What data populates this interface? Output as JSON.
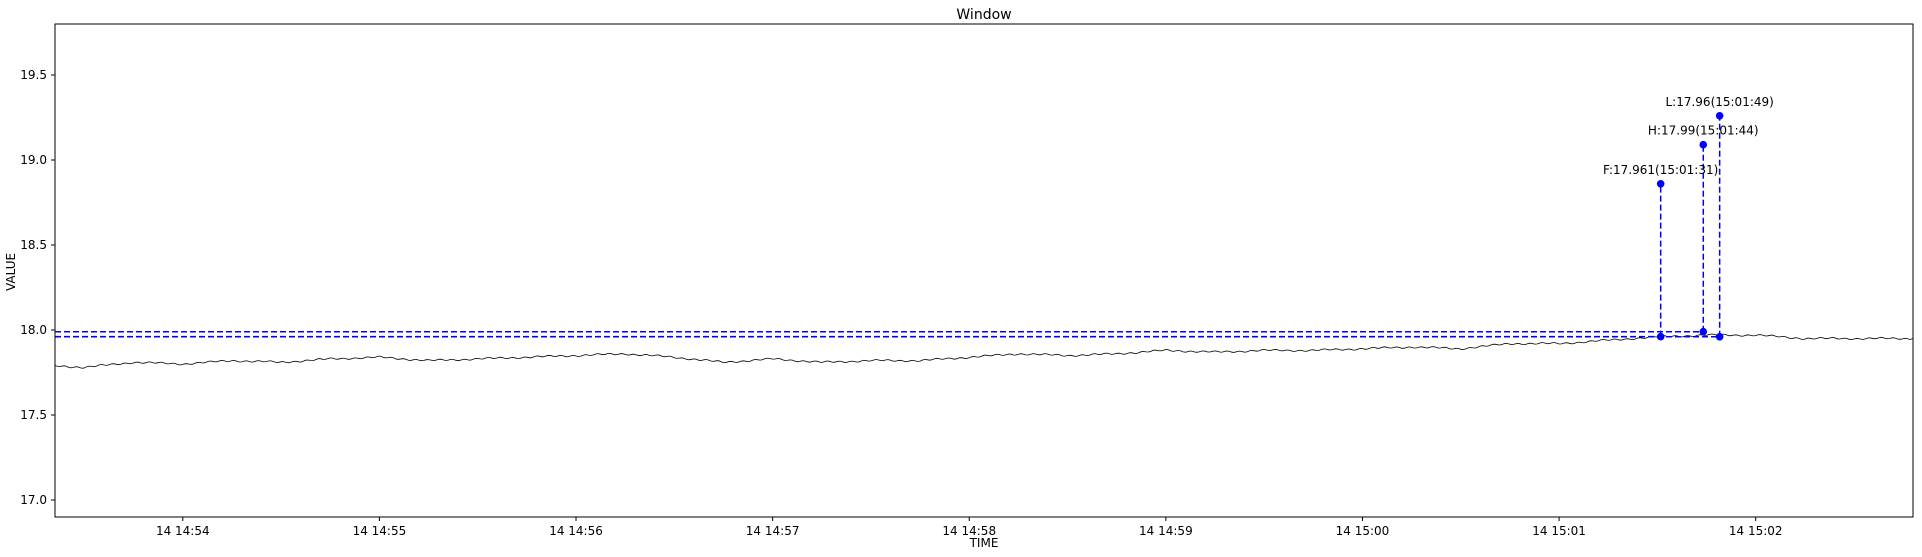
{
  "chart_data": {
    "type": "line",
    "title": "Window",
    "xlabel": "TIME",
    "ylabel": "VALUE",
    "xlim": [
      "14:53:21",
      "15:02:48"
    ],
    "ylim": [
      16.9,
      19.8
    ],
    "grid": false,
    "yticks": [
      17.0,
      17.5,
      18.0,
      18.5,
      19.0,
      19.5
    ],
    "ytick_labels": [
      "17.0",
      "17.5",
      "18.0",
      "18.5",
      "19.0",
      "19.5"
    ],
    "xticks": [
      "14:54:00",
      "14:55:00",
      "14:56:00",
      "14:57:00",
      "14:58:00",
      "14:59:00",
      "15:00:00",
      "15:01:00",
      "15:02:00"
    ],
    "xtick_labels": [
      "14 14:54",
      "14 14:55",
      "14 14:56",
      "14 14:57",
      "14 14:58",
      "14 14:59",
      "14 15:00",
      "14 15:01",
      "14 15:02"
    ],
    "series": [
      {
        "color": "#000000",
        "x": [
          "14:53:21",
          "14:53:30",
          "14:53:45",
          "14:54:00",
          "14:54:15",
          "14:54:30",
          "14:54:45",
          "14:55:00",
          "14:55:15",
          "14:55:30",
          "14:55:45",
          "14:56:00",
          "14:56:15",
          "14:56:30",
          "14:56:45",
          "14:57:00",
          "14:57:15",
          "14:57:30",
          "14:57:45",
          "14:58:00",
          "14:58:15",
          "14:58:30",
          "14:58:45",
          "14:59:00",
          "14:59:15",
          "14:59:30",
          "14:59:45",
          "15:00:00",
          "15:00:15",
          "15:00:30",
          "15:00:45",
          "15:01:00",
          "15:01:15",
          "15:01:30",
          "15:01:45",
          "15:02:00",
          "15:02:15",
          "15:02:30",
          "15:02:48"
        ],
        "y": [
          17.79,
          17.78,
          17.81,
          17.8,
          17.82,
          17.81,
          17.83,
          17.84,
          17.82,
          17.83,
          17.84,
          17.85,
          17.86,
          17.84,
          17.81,
          17.83,
          17.81,
          17.82,
          17.82,
          17.84,
          17.86,
          17.85,
          17.86,
          17.88,
          17.87,
          17.88,
          17.88,
          17.89,
          17.9,
          17.89,
          17.92,
          17.92,
          17.94,
          17.96,
          17.97,
          17.97,
          17.95,
          17.95,
          17.95
        ]
      }
    ],
    "markers": [
      {
        "label": "F:17.961(15:01:31)",
        "x": "15:01:31",
        "y_value": 17.961,
        "y_tip": 18.86,
        "color": "#0000ff"
      },
      {
        "label": "H:17.99(15:01:44)",
        "x": "15:01:44",
        "y_value": 17.99,
        "y_tip": 19.09,
        "color": "#0000ff"
      },
      {
        "label": "L:17.96(15:01:49)",
        "x": "15:01:49",
        "y_value": 17.96,
        "y_tip": 19.26,
        "color": "#0000ff"
      }
    ]
  }
}
